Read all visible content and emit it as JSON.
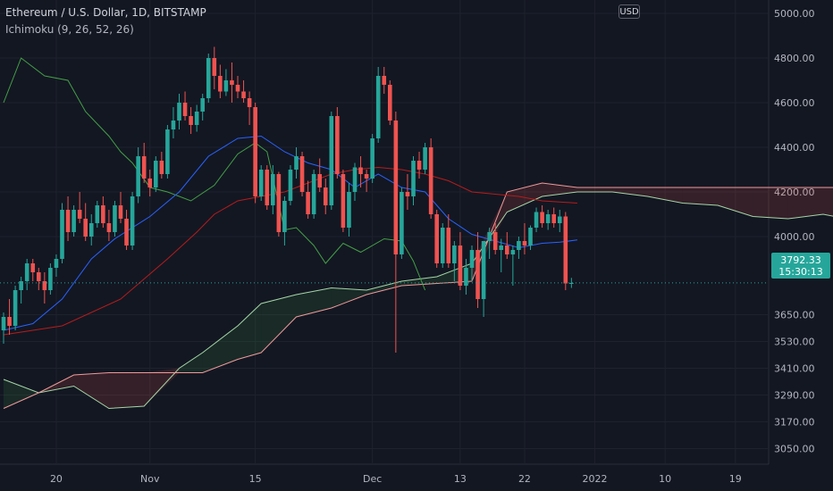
{
  "header": {
    "symbol": "Ethereum / U.S. Dollar, 1D, BITSTAMP",
    "indicator": "Ichimoku (9, 26, 52, 26)"
  },
  "currency": "USD",
  "last_price": "3792.33",
  "countdown": "15:30:13",
  "colors": {
    "background": "#131722",
    "up": "#26a69a",
    "down": "#ef5350",
    "conversion": "#2962ff",
    "base": "#b71c1c",
    "lagging": "#43a047",
    "span_a": "#a5d6a7",
    "span_b": "#ef9a9a"
  },
  "chart_data": {
    "type": "candlestick",
    "title": "Ethereum / U.S. Dollar, 1D, BITSTAMP",
    "ylim": [
      2980,
      5060
    ],
    "y_ticks": [
      "5000.00",
      "4800.00",
      "4600.00",
      "4400.00",
      "4200.00",
      "4000.00",
      "3650.00",
      "3530.00",
      "3410.00",
      "3290.00",
      "3170.00",
      "3050.00"
    ],
    "x_ticks": [
      "20",
      "Nov",
      "15",
      "Dec",
      "13",
      "22",
      "2022",
      "10",
      "19"
    ],
    "last_price": 3792.33,
    "candles": [
      [
        3580,
        3660,
        3520,
        3640
      ],
      [
        3640,
        3720,
        3560,
        3600
      ],
      [
        3600,
        3780,
        3580,
        3760
      ],
      [
        3760,
        3820,
        3700,
        3800
      ],
      [
        3800,
        3900,
        3760,
        3880
      ],
      [
        3880,
        3900,
        3800,
        3840
      ],
      [
        3840,
        3860,
        3760,
        3800
      ],
      [
        3800,
        3840,
        3700,
        3760
      ],
      [
        3760,
        3880,
        3740,
        3860
      ],
      [
        3860,
        3920,
        3820,
        3900
      ],
      [
        3900,
        4150,
        3880,
        4120
      ],
      [
        4120,
        4180,
        3980,
        4020
      ],
      [
        4020,
        4140,
        4000,
        4120
      ],
      [
        4120,
        4200,
        4060,
        4080
      ],
      [
        4080,
        4150,
        3980,
        4000
      ],
      [
        4000,
        4100,
        3960,
        4060
      ],
      [
        4060,
        4160,
        4040,
        4140
      ],
      [
        4140,
        4180,
        4040,
        4060
      ],
      [
        4060,
        4120,
        3980,
        4020
      ],
      [
        4020,
        4160,
        4000,
        4140
      ],
      [
        4140,
        4200,
        4060,
        4080
      ],
      [
        4080,
        4120,
        3940,
        3960
      ],
      [
        3960,
        4200,
        3940,
        4180
      ],
      [
        4180,
        4400,
        4150,
        4360
      ],
      [
        4360,
        4420,
        4240,
        4260
      ],
      [
        4260,
        4300,
        4180,
        4220
      ],
      [
        4220,
        4360,
        4200,
        4340
      ],
      [
        4340,
        4380,
        4260,
        4280
      ],
      [
        4280,
        4500,
        4260,
        4480
      ],
      [
        4480,
        4580,
        4440,
        4520
      ],
      [
        4520,
        4640,
        4480,
        4600
      ],
      [
        4600,
        4650,
        4520,
        4540
      ],
      [
        4540,
        4580,
        4460,
        4500
      ],
      [
        4500,
        4590,
        4470,
        4560
      ],
      [
        4560,
        4640,
        4520,
        4620
      ],
      [
        4620,
        4820,
        4600,
        4800
      ],
      [
        4800,
        4850,
        4660,
        4720
      ],
      [
        4720,
        4770,
        4620,
        4650
      ],
      [
        4650,
        4750,
        4630,
        4700
      ],
      [
        4700,
        4780,
        4600,
        4680
      ],
      [
        4680,
        4720,
        4620,
        4650
      ],
      [
        4650,
        4700,
        4600,
        4620
      ],
      [
        4620,
        4650,
        4500,
        4580
      ],
      [
        4580,
        4600,
        4150,
        4180
      ],
      [
        4180,
        4320,
        4160,
        4300
      ],
      [
        4300,
        4320,
        4120,
        4140
      ],
      [
        4140,
        4320,
        4100,
        4280
      ],
      [
        4280,
        4290,
        4000,
        4020
      ],
      [
        4020,
        4180,
        3960,
        4160
      ],
      [
        4160,
        4320,
        4140,
        4300
      ],
      [
        4300,
        4400,
        4260,
        4360
      ],
      [
        4360,
        4380,
        4180,
        4200
      ],
      [
        4200,
        4250,
        4080,
        4100
      ],
      [
        4100,
        4300,
        4080,
        4280
      ],
      [
        4280,
        4350,
        4200,
        4220
      ],
      [
        4220,
        4260,
        4100,
        4140
      ],
      [
        4140,
        4560,
        4120,
        4540
      ],
      [
        4540,
        4580,
        4260,
        4280
      ],
      [
        4280,
        4300,
        4020,
        4040
      ],
      [
        4040,
        4240,
        4000,
        4200
      ],
      [
        4200,
        4330,
        4160,
        4310
      ],
      [
        4310,
        4360,
        4220,
        4280
      ],
      [
        4280,
        4300,
        4200,
        4260
      ],
      [
        4260,
        4460,
        4240,
        4440
      ],
      [
        4440,
        4760,
        4420,
        4720
      ],
      [
        4720,
        4760,
        4640,
        4680
      ],
      [
        4680,
        4700,
        4500,
        4520
      ],
      [
        4520,
        4560,
        3480,
        3920
      ],
      [
        3920,
        4220,
        3900,
        4200
      ],
      [
        4200,
        4280,
        4120,
        4180
      ],
      [
        4180,
        4360,
        4140,
        4340
      ],
      [
        4340,
        4380,
        4260,
        4300
      ],
      [
        4300,
        4420,
        4280,
        4400
      ],
      [
        4400,
        4440,
        4080,
        4100
      ],
      [
        4100,
        4120,
        3860,
        3880
      ],
      [
        3880,
        4060,
        3860,
        4040
      ],
      [
        4040,
        4100,
        3860,
        3880
      ],
      [
        3880,
        3980,
        3800,
        3960
      ],
      [
        3960,
        4020,
        3760,
        3780
      ],
      [
        3780,
        3900,
        3740,
        3860
      ],
      [
        3860,
        3960,
        3800,
        3940
      ],
      [
        3940,
        4020,
        3680,
        3720
      ],
      [
        3720,
        3980,
        3640,
        3980
      ],
      [
        3980,
        4040,
        3900,
        4020
      ],
      [
        4020,
        4060,
        3920,
        3940
      ],
      [
        3940,
        3990,
        3840,
        3960
      ],
      [
        3960,
        4020,
        3900,
        3920
      ],
      [
        3920,
        3960,
        3780,
        3940
      ],
      [
        3940,
        4000,
        3900,
        3980
      ],
      [
        3980,
        4060,
        3920,
        3960
      ],
      [
        3960,
        4050,
        3940,
        4040
      ],
      [
        4040,
        4130,
        4020,
        4110
      ],
      [
        4110,
        4140,
        4040,
        4060
      ],
      [
        4060,
        4120,
        4030,
        4100
      ],
      [
        4100,
        4130,
        4040,
        4060
      ],
      [
        4060,
        4120,
        4020,
        4090
      ],
      [
        4090,
        4110,
        3760,
        3790
      ],
      [
        3790,
        3815,
        3770,
        3792
      ]
    ],
    "conversion_line": [
      [
        0,
        3580
      ],
      [
        5,
        3610
      ],
      [
        10,
        3720
      ],
      [
        15,
        3900
      ],
      [
        19,
        3990
      ],
      [
        25,
        4090
      ],
      [
        30,
        4200
      ],
      [
        35,
        4360
      ],
      [
        40,
        4440
      ],
      [
        44,
        4450
      ],
      [
        48,
        4380
      ],
      [
        52,
        4330
      ],
      [
        56,
        4300
      ],
      [
        60,
        4220
      ],
      [
        64,
        4280
      ],
      [
        68,
        4220
      ],
      [
        72,
        4200
      ],
      [
        76,
        4080
      ],
      [
        80,
        4010
      ],
      [
        84,
        3980
      ],
      [
        88,
        3950
      ],
      [
        92,
        3970
      ],
      [
        95,
        3975
      ],
      [
        98,
        3985
      ]
    ],
    "base_line": [
      [
        0,
        3560
      ],
      [
        10,
        3600
      ],
      [
        20,
        3720
      ],
      [
        28,
        3900
      ],
      [
        33,
        4020
      ],
      [
        36,
        4100
      ],
      [
        40,
        4160
      ],
      [
        44,
        4180
      ],
      [
        48,
        4200
      ],
      [
        52,
        4240
      ],
      [
        56,
        4280
      ],
      [
        60,
        4300
      ],
      [
        64,
        4310
      ],
      [
        68,
        4300
      ],
      [
        72,
        4280
      ],
      [
        76,
        4250
      ],
      [
        80,
        4200
      ],
      [
        84,
        4190
      ],
      [
        88,
        4180
      ],
      [
        92,
        4160
      ],
      [
        98,
        4150
      ]
    ],
    "lagging_span": [
      [
        0,
        4600
      ],
      [
        3,
        4800
      ],
      [
        7,
        4720
      ],
      [
        11,
        4700
      ],
      [
        14,
        4560
      ],
      [
        18,
        4450
      ],
      [
        20,
        4380
      ],
      [
        22,
        4330
      ],
      [
        25,
        4220
      ],
      [
        28,
        4200
      ],
      [
        32,
        4160
      ],
      [
        36,
        4230
      ],
      [
        40,
        4370
      ],
      [
        43,
        4420
      ],
      [
        45,
        4380
      ],
      [
        48,
        4030
      ],
      [
        50,
        4040
      ],
      [
        53,
        3960
      ],
      [
        55,
        3880
      ],
      [
        58,
        3970
      ],
      [
        61,
        3930
      ],
      [
        65,
        3990
      ],
      [
        68,
        3980
      ],
      [
        70,
        3890
      ],
      [
        72,
        3760
      ]
    ],
    "span_a": [
      [
        0,
        3360
      ],
      [
        6,
        3300
      ],
      [
        12,
        3330
      ],
      [
        18,
        3230
      ],
      [
        24,
        3240
      ],
      [
        30,
        3410
      ],
      [
        34,
        3480
      ],
      [
        40,
        3600
      ],
      [
        44,
        3700
      ],
      [
        50,
        3740
      ],
      [
        56,
        3770
      ],
      [
        62,
        3760
      ],
      [
        68,
        3800
      ],
      [
        74,
        3820
      ],
      [
        80,
        3880
      ],
      [
        86,
        4110
      ],
      [
        92,
        4180
      ],
      [
        98,
        4200
      ],
      [
        104,
        4200
      ],
      [
        110,
        4180
      ],
      [
        116,
        4150
      ],
      [
        122,
        4140
      ],
      [
        128,
        4090
      ],
      [
        134,
        4080
      ],
      [
        140,
        4100
      ],
      [
        146,
        4070
      ]
    ],
    "span_b": [
      [
        0,
        3230
      ],
      [
        6,
        3300
      ],
      [
        12,
        3380
      ],
      [
        18,
        3390
      ],
      [
        24,
        3390
      ],
      [
        30,
        3390
      ],
      [
        34,
        3390
      ],
      [
        40,
        3450
      ],
      [
        44,
        3480
      ],
      [
        50,
        3640
      ],
      [
        56,
        3680
      ],
      [
        62,
        3740
      ],
      [
        68,
        3780
      ],
      [
        74,
        3790
      ],
      [
        80,
        3800
      ],
      [
        86,
        4200
      ],
      [
        92,
        4240
      ],
      [
        98,
        4220
      ],
      [
        104,
        4220
      ],
      [
        110,
        4220
      ],
      [
        116,
        4220
      ],
      [
        122,
        4220
      ],
      [
        128,
        4220
      ],
      [
        134,
        4220
      ],
      [
        140,
        4220
      ],
      [
        146,
        4220
      ]
    ]
  }
}
